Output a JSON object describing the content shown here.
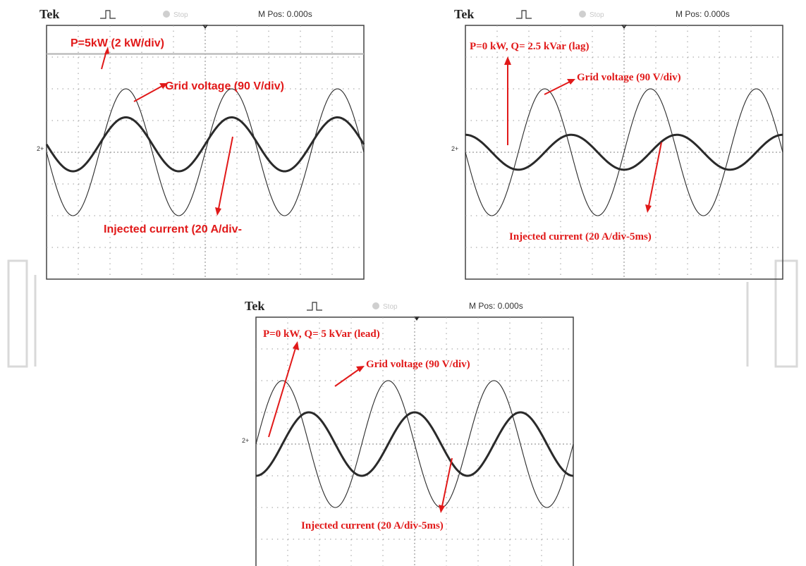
{
  "colors": {
    "annotation": "#e11919",
    "trace": "#2a2a2a",
    "grid_dot": "#9a9a9a",
    "frame": "#444444",
    "watermark": "#d9d9d9",
    "stop_indicator": "#cfcfcf"
  },
  "chart_data": [
    {
      "type": "line",
      "header": {
        "brand": "Tek",
        "status": "Stop",
        "mpos": "M Pos: 0.000s"
      },
      "channel_marker": "2+",
      "grid": true,
      "divisions": {
        "x": 10,
        "y": 8
      },
      "axis_range": {
        "x_div": [
          0,
          10
        ],
        "y_div": [
          -4,
          4
        ]
      },
      "series": [
        {
          "kind": "dc",
          "level_div": 3.1,
          "thickness": "medium",
          "color": "#b8b8b8"
        },
        {
          "kind": "sine",
          "amplitude_div": 2.0,
          "cycles": 3,
          "phase_deg": 180,
          "thickness": "thin"
        },
        {
          "kind": "sine",
          "amplitude_div": 0.85,
          "cycles": 3,
          "phase_deg": 180,
          "offset_div": 0.25,
          "thickness": "thick"
        }
      ],
      "annotations": [
        "P=5kW (2 kW/div)",
        "Grid voltage (90 V/div)",
        "Injected current (20 A/div-"
      ]
    },
    {
      "type": "line",
      "header": {
        "brand": "Tek",
        "status": "Stop",
        "mpos": "M Pos: 0.000s"
      },
      "channel_marker": "2+",
      "grid": true,
      "divisions": {
        "x": 10,
        "y": 8
      },
      "axis_range": {
        "x_div": [
          0,
          10
        ],
        "y_div": [
          -4,
          4
        ]
      },
      "series": [
        {
          "kind": "sine",
          "amplitude_div": 2.0,
          "cycles": 3,
          "phase_deg": 180,
          "thickness": "thin"
        },
        {
          "kind": "sine",
          "amplitude_div": 0.55,
          "cycles": 3,
          "phase_deg": 90,
          "thickness": "thick"
        }
      ],
      "annotations": [
        "P=0 kW, Q= 2.5 kVar (lag)",
        "Grid voltage (90 V/div)",
        "Injected current (20 A/div-5ms)"
      ]
    },
    {
      "type": "line",
      "header": {
        "brand": "Tek",
        "status": "Stop",
        "mpos": "M Pos: 0.000s"
      },
      "channel_marker": "2+",
      "grid": true,
      "divisions": {
        "x": 10,
        "y": 8
      },
      "axis_range": {
        "x_div": [
          0,
          10
        ],
        "y_div": [
          -4,
          4
        ]
      },
      "series": [
        {
          "kind": "sine",
          "amplitude_div": 2.0,
          "cycles": 3,
          "phase_deg": 0,
          "thickness": "thin"
        },
        {
          "kind": "sine",
          "amplitude_div": 1.0,
          "cycles": 3,
          "phase_deg": 270,
          "thickness": "thick"
        }
      ],
      "annotations": [
        "P=0 kW, Q= 5 kVar (lead)",
        "Grid voltage (90 V/div)",
        "Injected current (20 A/div-5ms)"
      ]
    }
  ]
}
